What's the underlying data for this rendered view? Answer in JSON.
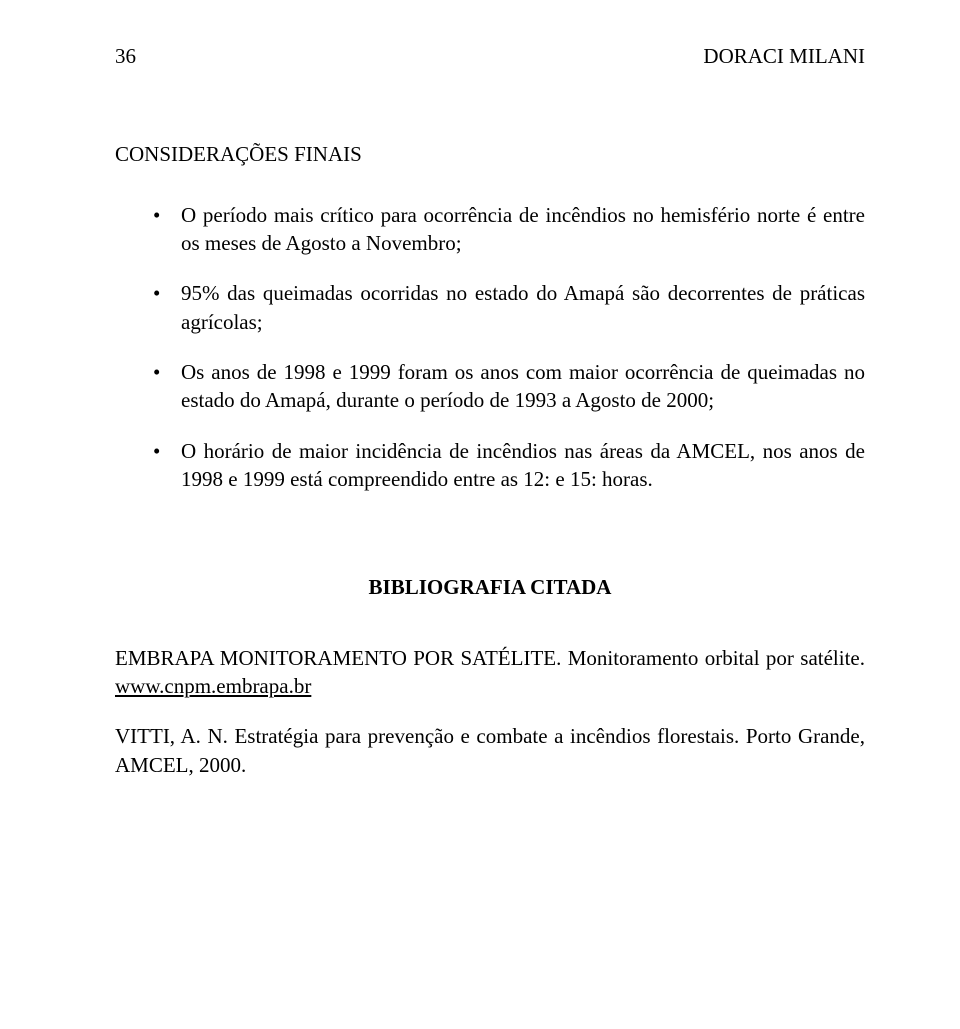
{
  "header": {
    "page_number": "36",
    "author": "DORACI MILANI"
  },
  "section1": {
    "heading": "CONSIDERAÇÕES FINAIS",
    "items": [
      "O período mais crítico para ocorrência de incêndios no hemisfério norte é entre os meses de Agosto a Novembro;",
      "95% das queimadas ocorridas no estado do Amapá são decorrentes de práticas agrícolas;",
      "Os anos de 1998 e 1999 foram os anos com maior ocorrência de queimadas no estado do Amapá, durante o período de 1993 a Agosto de 2000;",
      "O horário de maior incidência de incêndios nas áreas da AMCEL, nos anos de 1998 e 1999 está compreendido entre as 12: e 15: horas."
    ]
  },
  "bibliography": {
    "heading": "BIBLIOGRAFIA CITADA",
    "ref1": {
      "prefix": "EMBRAPA MONITORAMENTO POR SATÉLITE.  Monitoramento orbital por satélite.  ",
      "link": "www.cnpm.embrapa.br"
    },
    "ref2": "VITTI, A. N. Estratégia para prevenção e combate a incêndios florestais. Porto Grande, AMCEL, 2000."
  }
}
